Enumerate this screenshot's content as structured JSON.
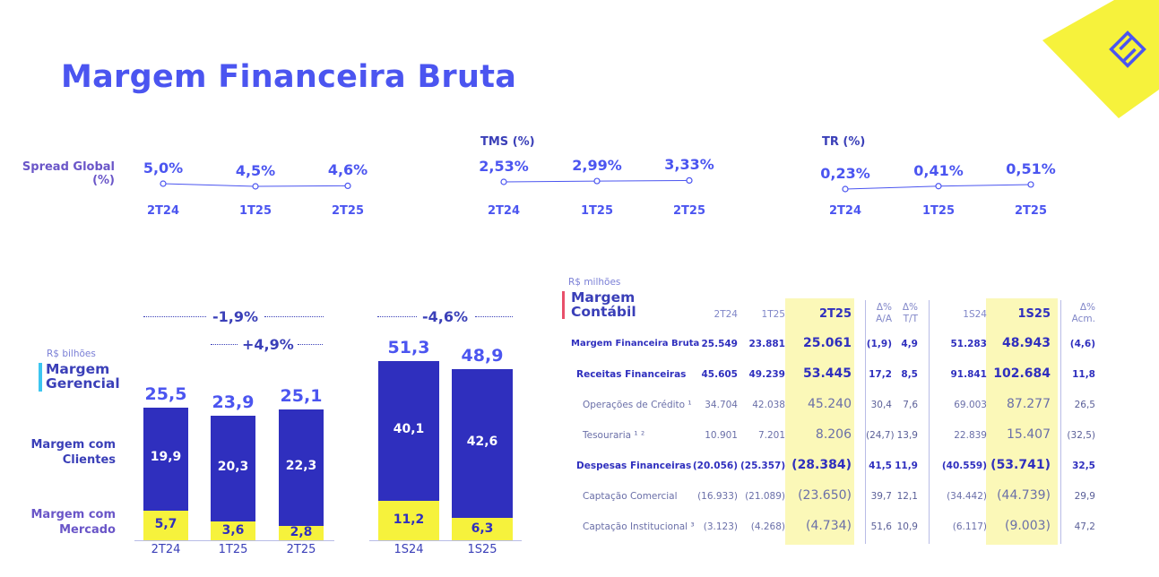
{
  "title": "Margem Financeira Bruta",
  "brand_icon": "bb-logo-icon",
  "colors": {
    "primary": "#4b55f0",
    "dark_blue": "#2f2fbe",
    "yellow": "#f6f23c",
    "highlight": "#fbf8b8",
    "red_accent": "#e8506a",
    "cyan_accent": "#3cc6f0"
  },
  "spread": {
    "label": "Spread Global (%)",
    "points": [
      {
        "x": "2T24",
        "v": "5,0%",
        "n": 5.0
      },
      {
        "x": "1T25",
        "v": "4,5%",
        "n": 4.5
      },
      {
        "x": "2T25",
        "v": "4,6%",
        "n": 4.6
      }
    ]
  },
  "tms": {
    "label": "TMS (%)",
    "points": [
      {
        "x": "2T24",
        "v": "2,53%",
        "n": 2.53
      },
      {
        "x": "1T25",
        "v": "2,99%",
        "n": 2.99
      },
      {
        "x": "2T25",
        "v": "3,33%",
        "n": 3.33
      }
    ]
  },
  "tr": {
    "label": "TR (%)",
    "points": [
      {
        "x": "2T24",
        "v": "0,23%",
        "n": 0.23
      },
      {
        "x": "1T25",
        "v": "0,41%",
        "n": 0.41
      },
      {
        "x": "2T25",
        "v": "0,51%",
        "n": 0.51
      }
    ]
  },
  "gerencial": {
    "unit": "R$ bilhões",
    "title_line1": "Margem",
    "title_line2": "Gerencial",
    "legend_clientes": "Margem com Clientes",
    "legend_mercado": "Margem com Mercado",
    "delta_yoy": "-1,9%",
    "delta_qoq": "+4,9%",
    "delta_sem": "-4,6%"
  },
  "chart_data": {
    "type": "bar",
    "stacked": true,
    "categories": [
      "2T24",
      "1T25",
      "2T25",
      "1S24",
      "1S25"
    ],
    "series": [
      {
        "name": "Margem com Clientes",
        "values": [
          19.9,
          20.3,
          22.3,
          40.1,
          42.6
        ],
        "labels": [
          "19,9",
          "20,3",
          "22,3",
          "40,1",
          "42,6"
        ]
      },
      {
        "name": "Margem com Mercado",
        "values": [
          5.7,
          3.6,
          2.8,
          11.2,
          6.3
        ],
        "labels": [
          "5,7",
          "3,6",
          "2,8",
          "11,2",
          "6,3"
        ]
      }
    ],
    "totals": [
      25.5,
      23.9,
      25.1,
      51.3,
      48.9
    ],
    "total_labels": [
      "25,5",
      "23,9",
      "25,1",
      "51,3",
      "48,9"
    ]
  },
  "table": {
    "unit": "R$ milhões",
    "title_line1": "Margem",
    "title_line2": "Contábil",
    "headers": [
      "2T24",
      "1T25",
      "2T25",
      "Δ% A/A",
      "Δ% T/T",
      "1S24",
      "1S25",
      "Δ% Acm."
    ],
    "hdr_aa_1": "Δ%",
    "hdr_aa_2": "A/A",
    "hdr_tt_1": "Δ%",
    "hdr_tt_2": "T/T",
    "hdr_acm_1": "Δ%",
    "hdr_acm_2": "Acm.",
    "rows": [
      {
        "label": "Margem Financeira Bruta",
        "vals": [
          "25.549",
          "23.881",
          "25.061",
          "(1,9)",
          "4,9",
          "51.283",
          "48.943",
          "(4,6)"
        ]
      },
      {
        "label": "Receitas Financeiras",
        "vals": [
          "45.605",
          "49.239",
          "53.445",
          "17,2",
          "8,5",
          "91.841",
          "102.684",
          "11,8"
        ]
      },
      {
        "label": "Operações de Crédito ¹",
        "vals": [
          "34.704",
          "42.038",
          "45.240",
          "30,4",
          "7,6",
          "69.003",
          "87.277",
          "26,5"
        ]
      },
      {
        "label": "Tesouraria ¹ ²",
        "vals": [
          "10.901",
          "7.201",
          "8.206",
          "(24,7)",
          "13,9",
          "22.839",
          "15.407",
          "(32,5)"
        ]
      },
      {
        "label": "Despesas Financeiras",
        "vals": [
          "(20.056)",
          "(25.357)",
          "(28.384)",
          "41,5",
          "11,9",
          "(40.559)",
          "(53.741)",
          "32,5"
        ]
      },
      {
        "label": "Captação Comercial",
        "vals": [
          "(16.933)",
          "(21.089)",
          "(23.650)",
          "39,7",
          "12,1",
          "(34.442)",
          "(44.739)",
          "29,9"
        ]
      },
      {
        "label": "Captação Institucional ³",
        "vals": [
          "(3.123)",
          "(4.268)",
          "(4.734)",
          "51,6",
          "10,9",
          "(6.117)",
          "(9.003)",
          "47,2"
        ]
      }
    ]
  }
}
